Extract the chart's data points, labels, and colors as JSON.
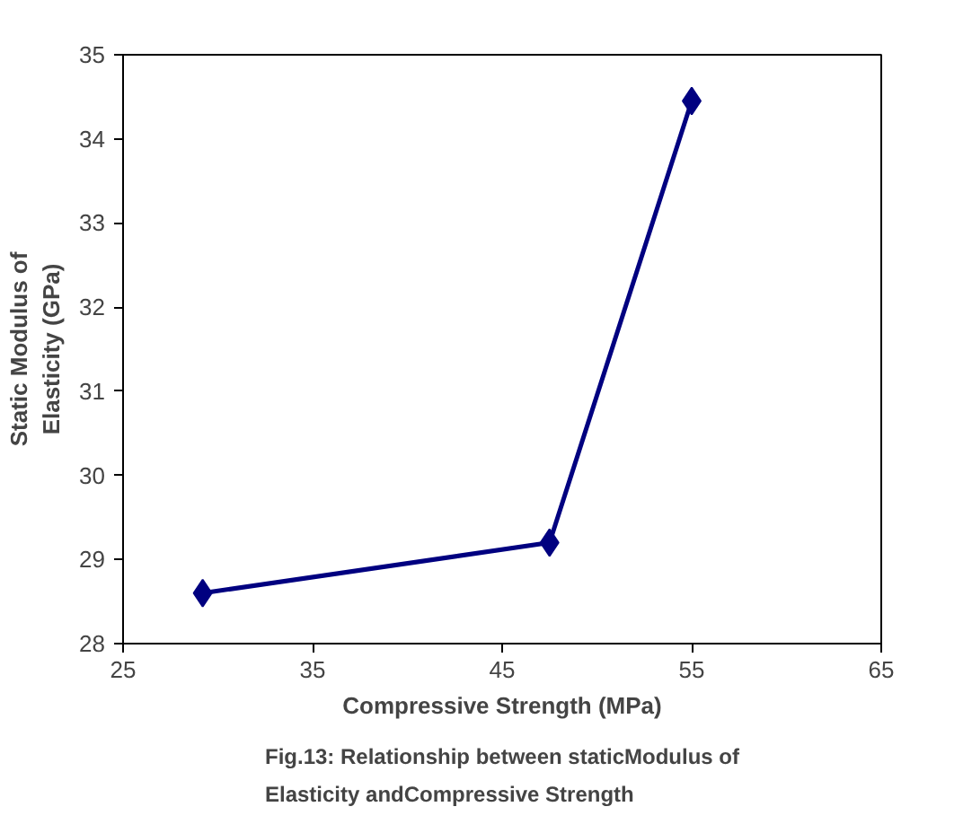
{
  "chart_data": {
    "type": "line",
    "xlabel": "Compressive Strength (MPa)",
    "ylabel": "Static Modulus of Elasticity (GPa)",
    "x": [
      29.2,
      47.5,
      55
    ],
    "series": [
      {
        "color": "#000080",
        "values": [
          28.6,
          29.2,
          34.45
        ]
      }
    ],
    "xlim": [
      25,
      65
    ],
    "xticks": [
      25,
      35,
      45,
      55,
      65
    ],
    "ylim": [
      28,
      35
    ],
    "yticks": [
      28,
      29,
      30,
      31,
      32,
      33,
      34,
      35
    ],
    "marker": "diamond",
    "line_style": "solid",
    "grid": false,
    "annotations": [
      "Fig.13: Relationship between staticModulus of Elasticity andCompressive Strength"
    ]
  }
}
